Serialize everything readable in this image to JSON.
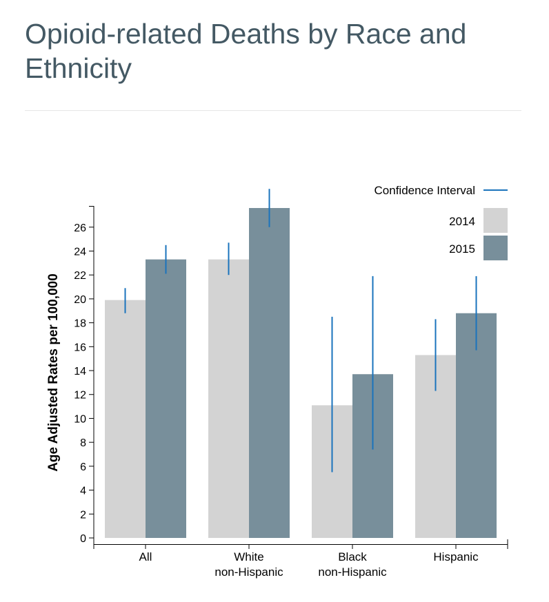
{
  "page": {
    "title": "Opioid-related Deaths by Race and Ethnicity"
  },
  "chart_data": {
    "type": "bar",
    "title": "Opioid-related Deaths by Race and Ethnicity",
    "ylabel": "Age Adjusted Rates per 100,000",
    "xlabel": "",
    "ylim": [
      0,
      27.6
    ],
    "yticks": [
      0,
      2,
      4,
      6,
      8,
      10,
      12,
      14,
      16,
      18,
      20,
      22,
      24,
      26
    ],
    "categories": [
      [
        "All"
      ],
      [
        "White",
        "non-Hispanic"
      ],
      [
        "Black",
        "non-Hispanic"
      ],
      [
        "Hispanic"
      ]
    ],
    "series": [
      {
        "name": "2014",
        "color": "#d3d3d3",
        "values": [
          19.9,
          23.3,
          11.1,
          15.3
        ],
        "ci_low": [
          18.8,
          22.0,
          5.5,
          12.3
        ],
        "ci_high": [
          20.9,
          24.7,
          18.5,
          18.3
        ]
      },
      {
        "name": "2015",
        "color": "#788f9b",
        "values": [
          23.3,
          27.6,
          13.7,
          18.8
        ],
        "ci_low": [
          22.1,
          26.0,
          7.4,
          15.7
        ],
        "ci_high": [
          24.5,
          29.2,
          21.9,
          21.9
        ]
      }
    ],
    "legend": {
      "ci_label": "Confidence Interval",
      "ci_color": "#1a73bc",
      "placement": "top-right"
    },
    "grid": false
  }
}
